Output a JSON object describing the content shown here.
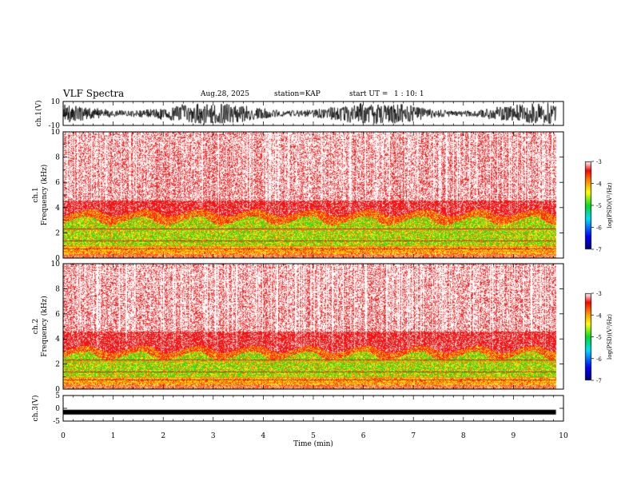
{
  "header": {
    "title": "VLF Spectra",
    "date": "Aug.28, 2025",
    "station": "station=KAP",
    "start_label": "start UT =",
    "start_time": "1 : 10: 1"
  },
  "chart_data": [
    {
      "type": "line",
      "id": "ch1-waveform",
      "ylabel": "ch.1(V)",
      "ylim": [
        -10,
        10
      ],
      "yticks": [
        "10",
        "-10"
      ],
      "xlim": [
        0,
        10
      ],
      "description_values": "dense oscillating amplitude filling most of the range"
    },
    {
      "type": "heatmap",
      "id": "ch1-spectrogram",
      "ylabel": "ch.1",
      "ylabel2": "Frequency (kHz)",
      "ylim": [
        0,
        10
      ],
      "yticks": [
        "0",
        "2",
        "4",
        "6",
        "8",
        "10"
      ],
      "xlim": [
        0,
        10
      ],
      "data_end_min": 9.85,
      "bands_khz": {
        "orange_top": 3.6,
        "green_top": 3.0,
        "green_bottom": 1.0
      }
    },
    {
      "type": "heatmap",
      "id": "ch2-spectrogram",
      "ylabel": "ch.2",
      "ylabel2": "Frequency (kHz)",
      "ylim": [
        0,
        10
      ],
      "yticks": [
        "0",
        "2",
        "4",
        "6",
        "8",
        "10"
      ],
      "xlim": [
        0,
        10
      ],
      "data_end_min": 9.85,
      "bands_khz": {
        "orange_top": 3.2,
        "green_top": 2.7,
        "green_bottom": 0.9
      }
    },
    {
      "type": "line",
      "id": "ch3-waveform",
      "ylabel": "ch.3(V)",
      "ylim": [
        -5,
        5
      ],
      "yticks": [
        "5",
        "0",
        "-5"
      ],
      "xlim": [
        0,
        10
      ],
      "xlabel": "Time (min)",
      "xticks": [
        "0",
        "1",
        "2",
        "3",
        "4",
        "5",
        "6",
        "7",
        "8",
        "9",
        "10"
      ],
      "level_v": -1.5
    }
  ],
  "colorbar": {
    "label": "log(PSD)(V²/Hz)",
    "ticks": [
      "-3",
      "-4",
      "-5",
      "-6",
      "-7"
    ],
    "range": [
      -7,
      -3
    ]
  }
}
